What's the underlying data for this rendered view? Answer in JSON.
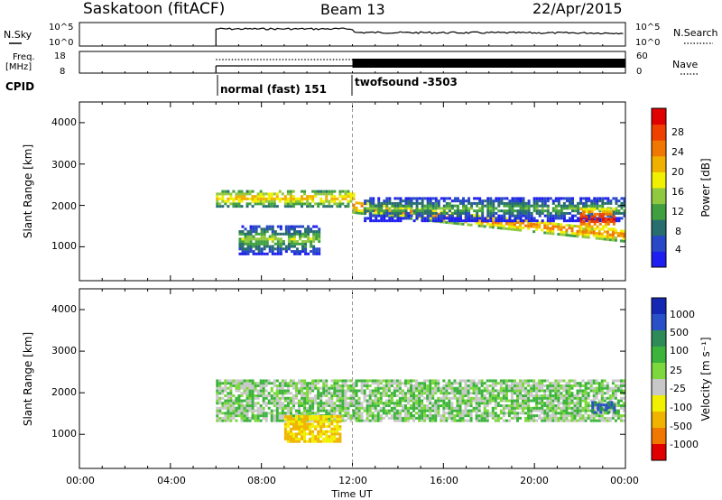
{
  "header": {
    "station": "Saskatoon (fitACF)",
    "beam": "Beam 13",
    "date": "22/Apr/2015"
  },
  "noise_panel": {
    "left_label": "N.Sky",
    "left_ticks": [
      "10^5",
      "10^0"
    ],
    "right_label": "N.Search",
    "right_ticks": [
      "10^5",
      "10^0"
    ]
  },
  "freq_panel": {
    "left_label_line1": "Freq.",
    "left_label_line2": "[MHz]",
    "left_ticks": [
      "18",
      "8"
    ],
    "right_label": "Nave",
    "right_ticks": [
      "60",
      "0"
    ]
  },
  "cpid": {
    "label": "CPID",
    "modes": [
      "normal (fast) 151",
      "twofsound -3503"
    ]
  },
  "power_panel": {
    "ylabel": "Slant Range [km]",
    "yticks": [
      "4000",
      "3000",
      "2000",
      "1000"
    ],
    "colorbar_label": "Power [dB]",
    "colorbar_ticks": [
      "28",
      "24",
      "20",
      "16",
      "12",
      "8",
      "4"
    ]
  },
  "velocity_panel": {
    "ylabel": "Slant Range [km]",
    "yticks": [
      "4000",
      "3000",
      "2000",
      "1000"
    ],
    "colorbar_label": "Velocity [m s⁻¹]",
    "colorbar_ticks": [
      "1000",
      "500",
      "100",
      "25",
      "-25",
      "-100",
      "-500",
      "-1000"
    ]
  },
  "xaxis": {
    "label": "Time UT",
    "ticks": [
      "00:00",
      "04:00",
      "08:00",
      "12:00",
      "16:00",
      "20:00",
      "00:00"
    ]
  },
  "chart_data": {
    "type": "heatmap",
    "title": "Saskatoon (fitACF)",
    "subtitle": "Beam 13",
    "date": "22/Apr/2015",
    "xlabel": "Time UT",
    "ylabel": "Slant Range [km]",
    "xlim_hours": [
      0,
      24
    ],
    "ylim_km": [
      180,
      4500
    ],
    "data_start_hour": 6.0,
    "mode_change_hour": 12.0,
    "power_colorscale": {
      "label": "Power [dB]",
      "range": [
        0,
        30
      ],
      "colors": [
        "#1e1ef0",
        "#2848c8",
        "#286e6e",
        "#40a040",
        "#90c840",
        "#f0f000",
        "#f0b000",
        "#f07800",
        "#f04000",
        "#e00000"
      ]
    },
    "velocity_colorscale": {
      "label": "Velocity [m s⁻¹]",
      "ticks": [
        1000,
        500,
        100,
        25,
        -25,
        -100,
        -500,
        -1000
      ],
      "colors": [
        "#1428b4",
        "#2850c8",
        "#2e8b57",
        "#3cb43c",
        "#7cd83c",
        "#c8c8c8",
        "#f0f000",
        "#f0b400",
        "#f07800",
        "#e00000"
      ]
    },
    "power_features": [
      {
        "name": "main_band_early",
        "t_start": 6.0,
        "t_end": 12.0,
        "range_km": [
          1950,
          2350
        ],
        "power_dB": 20
      },
      {
        "name": "main_band_late",
        "t_start": 12.0,
        "t_end": 24.0,
        "range_km_start": [
          1800,
          2100
        ],
        "range_km_end": [
          1100,
          1400
        ],
        "power_dB": 24
      },
      {
        "name": "upper_band",
        "t_start": 12.5,
        "t_end": 24.0,
        "range_km": [
          1600,
          2200
        ],
        "power_dB": 12
      },
      {
        "name": "lower_patch",
        "t_start": 7.0,
        "t_end": 10.5,
        "range_km": [
          800,
          1500
        ],
        "power_dB": 14
      },
      {
        "name": "late_patch",
        "t_start": 22.0,
        "t_end": 23.5,
        "range_km": [
          1400,
          1900
        ],
        "power_dB": 28
      }
    ],
    "velocity_features": [
      {
        "name": "ground_scatter",
        "t_start": 6.0,
        "t_end": 24.0,
        "range_km": [
          1300,
          2300
        ],
        "velocity_ms": 0
      },
      {
        "name": "negative_patch",
        "t_start": 9.0,
        "t_end": 11.5,
        "range_km": [
          800,
          1450
        ],
        "velocity_ms": -500
      },
      {
        "name": "positive_patch",
        "t_start": 22.5,
        "t_end": 23.5,
        "range_km": [
          1500,
          1800
        ],
        "velocity_ms": 500
      }
    ]
  }
}
